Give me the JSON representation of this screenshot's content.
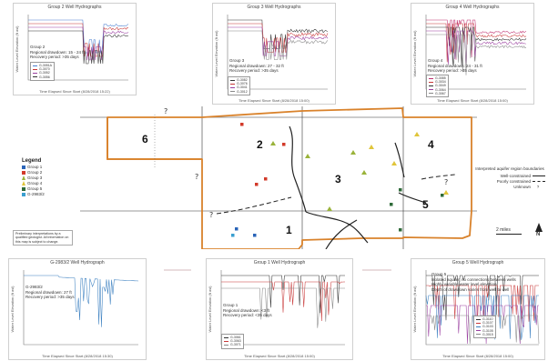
{
  "panels": {
    "group2": {
      "title": "Group 2 Well Hydrographs",
      "xlabel": "Time Elapsed Since Start (8/28/2018 15:22)",
      "ylabel": "Water Level Elevation (ft asl)",
      "notes": [
        "Group 2",
        "Regional drawdown: 15 - 24 ft",
        "Recovery period: >35 days"
      ],
      "legend": [
        "G-3051A",
        "G-3070",
        "G-3052",
        "G-3056"
      ],
      "colors": [
        "#4a7fd0",
        "#c83737",
        "#9a3fa0",
        "#333333"
      ]
    },
    "group3": {
      "title": "Group 3 Well Hydrographs",
      "xlabel": "Time Elapsed Since Start (8/28/2018 15:00)",
      "ylabel": "Water Level Elevation (ft asl)",
      "notes": [
        "Group 3",
        "Regional drawdown: 27 - 32 ft",
        "Recovery period: >35 days"
      ],
      "legend": [
        "G-3082",
        "G-3076",
        "G-3041",
        "G-3012"
      ],
      "colors": [
        "#333333",
        "#c83737",
        "#9a3fa0",
        "#888888"
      ]
    },
    "group4": {
      "title": "Group 4 Well Hydrographs",
      "xlabel": "Time Elapsed Since Start (8/28/2018 15:00)",
      "ylabel": "Water Level Elevation (ft asl)",
      "notes": [
        "Group 4",
        "Regional drawdown: 24 - 31 ft",
        "Recovery period: >35 days"
      ],
      "legend": [
        "G-3085",
        "G-3034",
        "G-3049",
        "G-3064",
        "G-3067"
      ],
      "colors": [
        "#c0306f",
        "#c83737",
        "#333333",
        "#9a3fa0",
        "#888888"
      ]
    },
    "g2983": {
      "title": "G-2983/2 Well Hydrograph",
      "xlabel": "Time Elapsed Since Start (8/28/2018 15:30)",
      "ylabel": "Water Level Elevation (ft asl)",
      "notes": [
        "G-2983/2",
        "Regional drawdown: 27 ft",
        "Recovery period: >35 days"
      ],
      "legend": [],
      "colors": [
        "#3a7fc0"
      ]
    },
    "group1": {
      "title": "Group 1 Well Hydrograph",
      "xlabel": "Time Elapsed Since Start (8/28/2018 15:00)",
      "ylabel": "Water Level Elevation (ft asl)",
      "notes": [
        "Group 1",
        "Regional drawdown: <3 ft",
        "Recovery period: <35 days"
      ],
      "legend": [
        "G-3061",
        "G-3063",
        "G-3071"
      ],
      "colors": [
        "#333333",
        "#c83737",
        "#888888"
      ]
    },
    "group5": {
      "title": "Group 5 Well Hydrograph",
      "xlabel": "Time Elapsed Since Start (8/28/2018 15:00)",
      "ylabel": "Water Level Elevation (ft asl)",
      "notes": [
        "Group 5",
        "Isolated aquifer, no connections between wells",
        "Highly variable water level elevation",
        "Depth of drawdown varies from well to well"
      ],
      "legend": [
        "G-3110",
        "G-3107",
        "G-3103",
        "G-3105",
        "G-3015"
      ],
      "colors": [
        "#333333",
        "#c83737",
        "#3a7fc0",
        "#9a3fa0",
        "#888888"
      ]
    }
  },
  "map": {
    "regions": [
      "1",
      "2",
      "3",
      "4",
      "5",
      "6"
    ],
    "unknown_mark": "?",
    "orange": "#d9822b"
  },
  "legend": {
    "title": "Legend",
    "items": [
      {
        "label": "Group 1",
        "color": "#2a64b8",
        "shape": "square"
      },
      {
        "label": "Group 2",
        "color": "#d23a2a",
        "shape": "square"
      },
      {
        "label": "Group 3",
        "color": "#9ab33a",
        "shape": "triangle"
      },
      {
        "label": "Group 4",
        "color": "#e0c53a",
        "shape": "triangle"
      },
      {
        "label": "Group 5",
        "color": "#2f6b3a",
        "shape": "square"
      },
      {
        "label": "G-2983/2",
        "color": "#3a9fd0",
        "shape": "square"
      }
    ]
  },
  "prelim_note": "Preliminary interpretations by a qualified geologist. All information on this map is subject to change.",
  "boundaries": {
    "title": "Interpreted aquifer region boundaries",
    "items": [
      "Well-constrained",
      "Poorly constrained",
      "Unknown"
    ],
    "unknown_mark": "?"
  },
  "scale": "2 miles",
  "north": "N"
}
